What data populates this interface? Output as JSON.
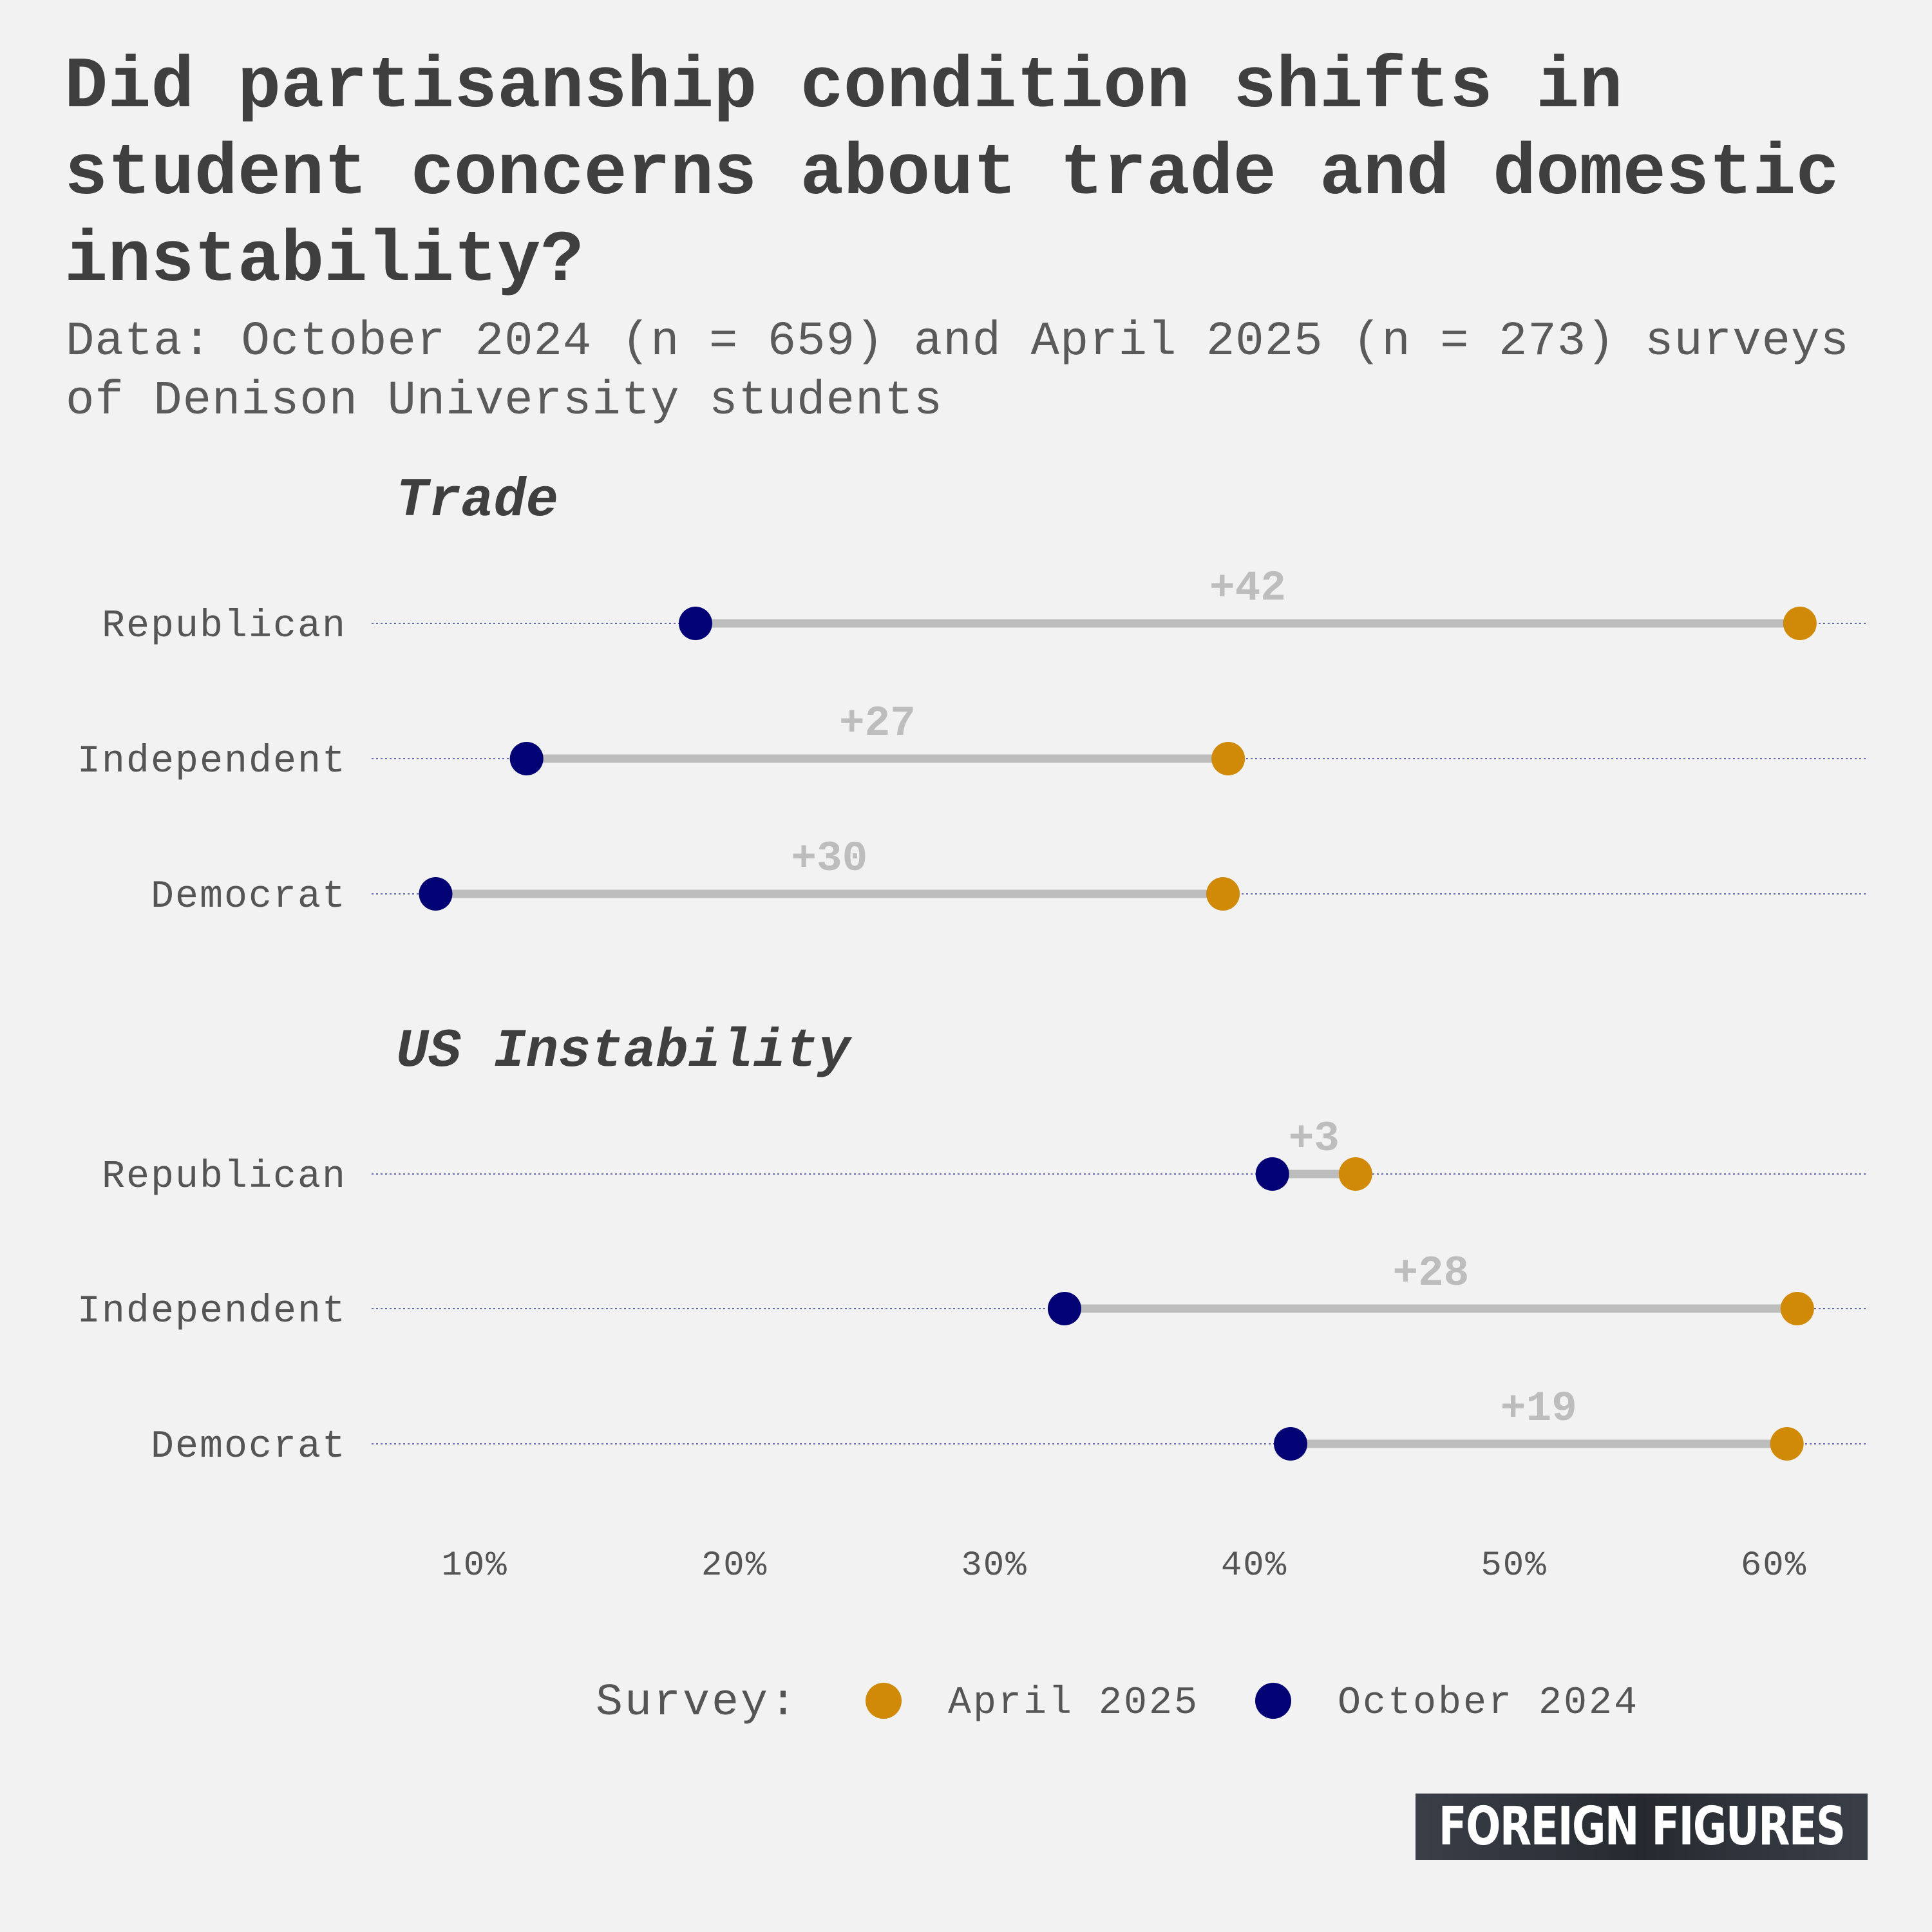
{
  "title": "Did partisanship condition shifts in student concerns about trade and domestic instability?",
  "subtitle": "Data: October 2024 (n = 659) and April 2025 (n = 273) surveys of Denison University students",
  "branding": "FOREIGN FIGURES",
  "colors": {
    "april_2025": "#d08a07",
    "october_2024": "#020275",
    "connector": "#bdbdbd",
    "change_label": "#bdbdbd",
    "gridline": "#6b6bb5",
    "text": "#3f3f3f",
    "background": "#f2f2f2"
  },
  "chart_data": {
    "type": "dumbbell",
    "x_axis": {
      "ticks": [
        10,
        20,
        30,
        40,
        50,
        60
      ],
      "tick_labels": [
        "10%",
        "20%",
        "30%",
        "40%",
        "50%",
        "60%"
      ],
      "range": [
        4,
        63.5
      ],
      "unit": "%"
    },
    "legend": {
      "title": "Survey:",
      "placement": "bottom",
      "items": [
        {
          "label": "April 2025",
          "color_key": "april_2025"
        },
        {
          "label": "October 2024",
          "color_key": "october_2024"
        }
      ]
    },
    "panels": [
      {
        "title": "Trade",
        "rows": [
          {
            "group": "Republican",
            "october_2024": 18.5,
            "april_2025": 61,
            "change": "+42"
          },
          {
            "group": "Independent",
            "october_2024": 12,
            "april_2025": 39,
            "change": "+27"
          },
          {
            "group": "Democrat",
            "october_2024": 8.5,
            "april_2025": 38.8,
            "change": "+30"
          }
        ]
      },
      {
        "title": "US Instability",
        "rows": [
          {
            "group": "Republican",
            "october_2024": 40.7,
            "april_2025": 43.9,
            "change": "+3"
          },
          {
            "group": "Independent",
            "october_2024": 32.7,
            "april_2025": 60.9,
            "change": "+28"
          },
          {
            "group": "Democrat",
            "october_2024": 41.4,
            "april_2025": 60.5,
            "change": "+19"
          }
        ]
      }
    ]
  }
}
